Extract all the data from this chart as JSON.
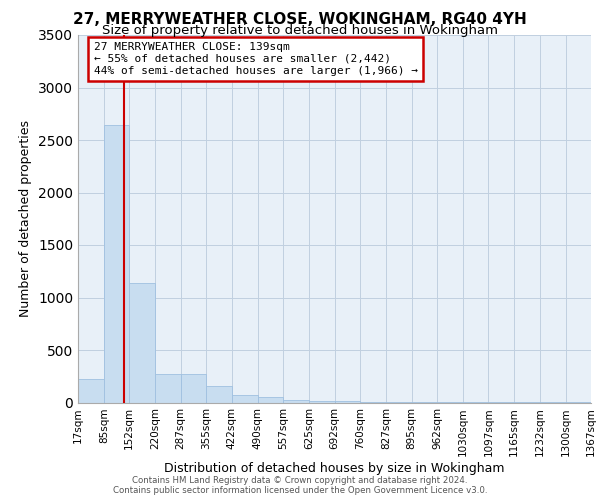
{
  "title1": "27, MERRYWEATHER CLOSE, WOKINGHAM, RG40 4YH",
  "title2": "Size of property relative to detached houses in Wokingham",
  "xlabel": "Distribution of detached houses by size in Wokingham",
  "ylabel": "Number of detached properties",
  "footer1": "Contains HM Land Registry data © Crown copyright and database right 2024.",
  "footer2": "Contains public sector information licensed under the Open Government Licence v3.0.",
  "annotation_title": "27 MERRYWEATHER CLOSE: 139sqm",
  "annotation_line1": "← 55% of detached houses are smaller (2,442)",
  "annotation_line2": "44% of semi-detached houses are larger (1,966) →",
  "property_size_sqm": 139,
  "bar_left_edges": [
    17,
    85,
    152,
    220,
    287,
    355,
    422,
    490,
    557,
    625,
    692,
    760,
    827,
    895,
    962,
    1030,
    1097,
    1165,
    1232,
    1300
  ],
  "bar_widths": [
    68,
    67,
    68,
    67,
    68,
    67,
    68,
    67,
    68,
    67,
    68,
    67,
    68,
    67,
    68,
    67,
    68,
    67,
    68,
    67
  ],
  "bar_heights": [
    220,
    2640,
    1140,
    270,
    270,
    155,
    75,
    50,
    25,
    15,
    10,
    8,
    6,
    5,
    4,
    3,
    2,
    2,
    1,
    1
  ],
  "bar_color": "#c8ddf0",
  "bar_edge_color": "#a0c0e0",
  "plot_bg_color": "#e8f0f8",
  "marker_color": "#cc0000",
  "ylim": [
    0,
    3500
  ],
  "yticks": [
    0,
    500,
    1000,
    1500,
    2000,
    2500,
    3000,
    3500
  ],
  "tick_labels": [
    "17sqm",
    "85sqm",
    "152sqm",
    "220sqm",
    "287sqm",
    "355sqm",
    "422sqm",
    "490sqm",
    "557sqm",
    "625sqm",
    "692sqm",
    "760sqm",
    "827sqm",
    "895sqm",
    "962sqm",
    "1030sqm",
    "1097sqm",
    "1165sqm",
    "1232sqm",
    "1300sqm",
    "1367sqm"
  ],
  "grid_color": "#c0cfe0",
  "background_color": "#ffffff",
  "title_fontsize": 11,
  "subtitle_fontsize": 9.5,
  "axis_label_fontsize": 9,
  "tick_fontsize": 7.5,
  "annotation_box_color": "#ffffff",
  "annotation_box_edge": "#cc0000",
  "annotation_fontsize": 8
}
